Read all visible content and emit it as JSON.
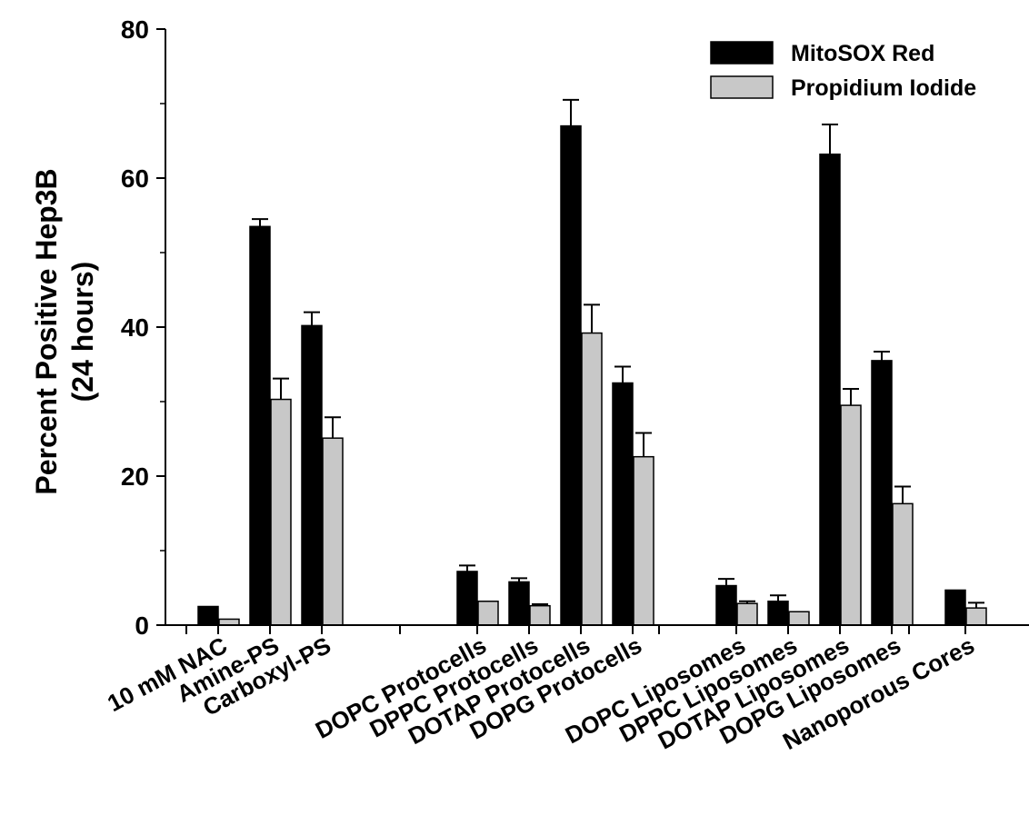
{
  "chart_data": {
    "type": "bar",
    "ylabel_line1": "Percent Positive Hep3B",
    "ylabel_line2": "(24 hours)",
    "ylim": [
      0,
      80
    ],
    "yticks": [
      "0",
      "20",
      "40",
      "60",
      "80"
    ],
    "categories": [
      "10 mM NAC",
      "Amine-PS",
      "Carboxyl-PS",
      "DOPC Protocells",
      "DPPC Protocells",
      "DOTAP Protocells",
      "DOPG Protocells",
      "DOPC Liposomes",
      "DPPC Liposomes",
      "DOTAP Liposomes",
      "DOPG Liposomes",
      "Nanoporous Cores"
    ],
    "series": [
      {
        "name": "MitoSOX Red",
        "color": "#000000",
        "values": [
          2.5,
          53.5,
          40.2,
          7.2,
          5.8,
          67.0,
          32.5,
          5.3,
          3.2,
          63.2,
          35.5,
          4.7
        ],
        "errors": [
          0.0,
          1.0,
          1.8,
          0.8,
          0.5,
          3.5,
          2.2,
          0.9,
          0.8,
          4.0,
          1.2,
          0.0
        ]
      },
      {
        "name": "Propidium Iodide",
        "color": "#c8c8c8",
        "values": [
          0.8,
          30.3,
          25.1,
          3.2,
          2.6,
          39.2,
          22.6,
          2.9,
          1.8,
          29.5,
          16.3,
          2.3
        ],
        "errors": [
          0.0,
          2.8,
          2.8,
          0.0,
          0.2,
          3.8,
          3.2,
          0.3,
          0.0,
          2.2,
          2.3,
          0.7
        ]
      }
    ],
    "legend_position": "top-right",
    "grid": false
  }
}
